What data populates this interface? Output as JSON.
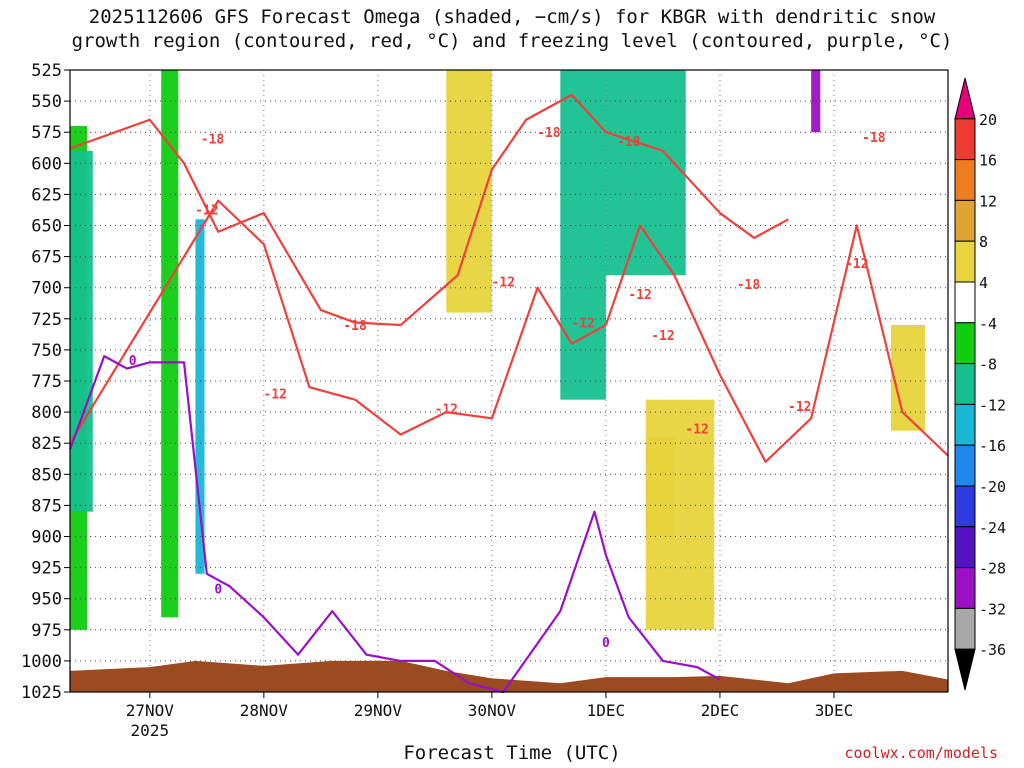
{
  "title": {
    "line1": "2025112606 GFS Forecast Omega (shaded, −cm/s) for KBGR with dendritic snow",
    "line2": "growth region (contoured, red, °C) and freezing level (contoured, purple, °C)"
  },
  "credit": "coolwx.com/models",
  "chart_data": {
    "type": "heatmap",
    "title": "2025112606 GFS Forecast Omega (shaded, −cm/s) for KBGR with dendritic snow growth region (contoured, red, °C) and freezing level (contoured, purple, °C)",
    "xlabel": "Forecast Time (UTC)",
    "ylabel": "",
    "x_ticks": [
      "27NOV",
      "28NOV",
      "29NOV",
      "30NOV",
      "1DEC",
      "2DEC",
      "3DEC"
    ],
    "x_tick_year": "2025",
    "x_range_days": [
      -0.7,
      7.0
    ],
    "y_ticks": [
      525,
      550,
      575,
      600,
      625,
      650,
      675,
      700,
      725,
      750,
      775,
      800,
      825,
      850,
      875,
      900,
      925,
      950,
      975,
      1000,
      1025
    ],
    "y_range_hpa": [
      525,
      1025
    ],
    "grid": true,
    "colorbar": {
      "labels": [
        "20",
        "16",
        "12",
        "8",
        "4",
        "-4",
        "-8",
        "-12",
        "-16",
        "-20",
        "-24",
        "-28",
        "-32",
        "-36"
      ],
      "colors": [
        "#e6007a",
        "#ee3b30",
        "#ee7d22",
        "#e0a432",
        "#e8d43c",
        "#ffffff",
        "#11cc11",
        "#16c08e",
        "#19b7d6",
        "#1e88ee",
        "#2b3be0",
        "#5512c2",
        "#9b10c4",
        "#a8a8a8",
        "#000000"
      ]
    },
    "omega_regions": [
      {
        "label": "sink-green-1",
        "x": [
          -0.7,
          -0.55
        ],
        "p": [
          570,
          975
        ],
        "value": -8
      },
      {
        "label": "sink-teal-1",
        "x": [
          -0.7,
          -0.5
        ],
        "p": [
          590,
          880
        ],
        "value": -12
      },
      {
        "label": "sink-green-2",
        "x": [
          0.1,
          0.25
        ],
        "p": [
          525,
          965
        ],
        "value": -8
      },
      {
        "label": "sink-blue-1",
        "x": [
          0.4,
          0.48
        ],
        "p": [
          645,
          930
        ],
        "value": -16
      },
      {
        "label": "rise-yellow-1",
        "x": [
          2.6,
          3.0
        ],
        "p": [
          525,
          720
        ],
        "value": 4
      },
      {
        "label": "sink-teal-2",
        "x": [
          3.6,
          4.0
        ],
        "p": [
          525,
          790
        ],
        "value": -12
      },
      {
        "label": "sink-teal-3",
        "x": [
          4.0,
          4.7
        ],
        "p": [
          525,
          690
        ],
        "value": -12
      },
      {
        "label": "rise-orange-1",
        "x": [
          4.35,
          4.6
        ],
        "p": [
          820,
          900
        ],
        "value": 8
      },
      {
        "label": "rise-yellow-2",
        "x": [
          4.35,
          4.95
        ],
        "p": [
          790,
          975
        ],
        "value": 4
      },
      {
        "label": "sink-purple-1",
        "x": [
          5.8,
          5.88
        ],
        "p": [
          525,
          575
        ],
        "value": -32
      },
      {
        "label": "rise-yellow-3",
        "x": [
          6.5,
          6.8
        ],
        "p": [
          730,
          815
        ],
        "value": 4
      }
    ],
    "series": [
      {
        "name": "-18",
        "color": "#f0403c",
        "x": [
          -0.7,
          0.0,
          0.3,
          0.6,
          1.0,
          1.5,
          1.8,
          2.2,
          2.7,
          3.0,
          3.3,
          3.7,
          4.0,
          4.5,
          5.0,
          5.3,
          5.6
        ],
        "y": [
          588,
          565,
          600,
          655,
          640,
          718,
          728,
          730,
          690,
          605,
          565,
          545,
          575,
          590,
          640,
          660,
          645
        ]
      },
      {
        "name": "-12",
        "color": "#f0403c",
        "x": [
          -0.7,
          0.6,
          1.0,
          1.4,
          1.8,
          2.2,
          2.6,
          3.0,
          3.4,
          3.7,
          4.0,
          4.3,
          4.6,
          5.0,
          5.4,
          5.8,
          6.2,
          6.6,
          7.0
        ],
        "y": [
          825,
          630,
          665,
          780,
          790,
          818,
          800,
          805,
          700,
          745,
          730,
          650,
          690,
          770,
          840,
          805,
          650,
          800,
          835
        ]
      },
      {
        "name": "0",
        "color": "#9a10c8",
        "x": [
          -0.7,
          -0.4,
          -0.2,
          0.0,
          0.3,
          0.5,
          0.7,
          1.0,
          1.3,
          1.6,
          1.9,
          2.2,
          2.5,
          2.8,
          3.1,
          3.6,
          3.9,
          4.0,
          4.2,
          4.5,
          4.8,
          5.0
        ],
        "y": [
          830,
          755,
          765,
          760,
          760,
          930,
          940,
          965,
          995,
          960,
          995,
          1000,
          1000,
          1018,
          1025,
          960,
          880,
          915,
          965,
          1000,
          1005,
          1015
        ]
      }
    ],
    "terrain": {
      "label": "surface",
      "color": "#9b4a22",
      "x": [
        -0.7,
        0.0,
        0.4,
        1.0,
        1.6,
        2.2,
        2.6,
        3.0,
        3.6,
        4.0,
        4.6,
        5.0,
        5.6,
        6.0,
        6.6,
        7.0
      ],
      "y": [
        1008,
        1005,
        1000,
        1004,
        1000,
        1000,
        1008,
        1014,
        1018,
        1013,
        1013,
        1012,
        1018,
        1010,
        1008,
        1015
      ]
    },
    "contour_labels": [
      {
        "text": "-18",
        "x": 0.55,
        "y": 580
      },
      {
        "text": "-12",
        "x": 0.5,
        "y": 637
      },
      {
        "text": "-18",
        "x": 1.8,
        "y": 730
      },
      {
        "text": "-12",
        "x": 1.1,
        "y": 785
      },
      {
        "text": "-12",
        "x": 2.6,
        "y": 797
      },
      {
        "text": "-12",
        "x": 3.1,
        "y": 695
      },
      {
        "text": "-18",
        "x": 3.5,
        "y": 575
      },
      {
        "text": "-18",
        "x": 4.2,
        "y": 582
      },
      {
        "text": "-12",
        "x": 3.8,
        "y": 728
      },
      {
        "text": "-12",
        "x": 4.3,
        "y": 705
      },
      {
        "text": "-12",
        "x": 4.5,
        "y": 738
      },
      {
        "text": "-12",
        "x": 4.8,
        "y": 813
      },
      {
        "text": "-18",
        "x": 5.25,
        "y": 697
      },
      {
        "text": "-12",
        "x": 5.7,
        "y": 795
      },
      {
        "text": "-12",
        "x": 6.2,
        "y": 680
      },
      {
        "text": "-18",
        "x": 6.35,
        "y": 579
      },
      {
        "text": "0",
        "x": -0.15,
        "y": 758
      },
      {
        "text": "0",
        "x": 0.6,
        "y": 942
      },
      {
        "text": "0",
        "x": 4.0,
        "y": 985
      }
    ]
  }
}
